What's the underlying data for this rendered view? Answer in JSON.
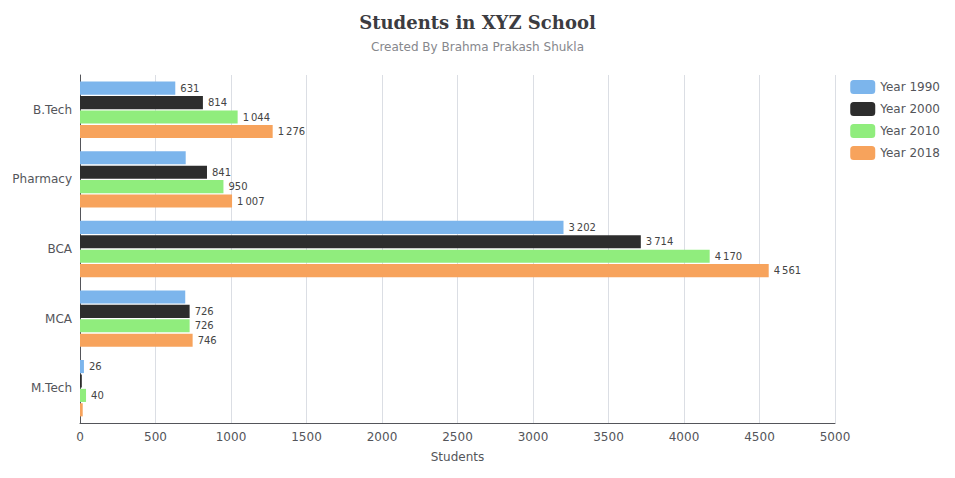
{
  "chart_data": {
    "type": "bar",
    "orientation": "horizontal",
    "title": "Students in XYZ School",
    "subtitle": "Created By Brahma Prakash Shukla",
    "xlabel": "Students",
    "categories": [
      "M.Tech",
      "MCA",
      "BCA",
      "Pharmacy",
      "B.Tech"
    ],
    "series": [
      {
        "name": "Year 1990",
        "color": "#7cb5ec",
        "values": [
          26,
          697,
          3202,
          700,
          631
        ],
        "value_labels": [
          "26",
          null,
          "3 202",
          null,
          "631"
        ]
      },
      {
        "name": "Year 2000",
        "color": "#2d2d2d",
        "values": [
          12,
          726,
          3714,
          841,
          814
        ],
        "value_labels": [
          null,
          "726",
          "3 714",
          "841",
          "814"
        ]
      },
      {
        "name": "Year 2010",
        "color": "#90ed7d",
        "values": [
          40,
          726,
          4170,
          950,
          1044
        ],
        "value_labels": [
          "40",
          "726",
          "4 170",
          "950",
          "1 044"
        ]
      },
      {
        "name": "Year 2018",
        "color": "#f7a35c",
        "values": [
          18,
          746,
          4561,
          1007,
          1276
        ],
        "value_labels": [
          null,
          "746",
          "4 561",
          "1 007",
          "1 276"
        ]
      }
    ],
    "xlim": [
      0,
      5000
    ],
    "xticks": [
      0,
      500,
      1000,
      1500,
      2000,
      2500,
      3000,
      3500,
      4000,
      4500,
      5000
    ],
    "grid": true,
    "legend": "upper right",
    "data_labels": true
  }
}
